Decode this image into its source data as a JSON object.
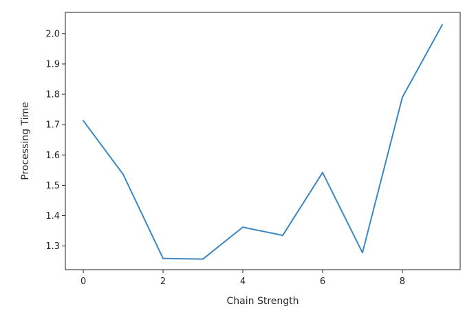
{
  "chart_data": {
    "type": "line",
    "xlabel": "Chain Strength",
    "ylabel": "Processing Time",
    "xlim": [
      -0.45,
      9.45
    ],
    "ylim": [
      1.222,
      2.07
    ],
    "grid": false,
    "x_ticks": [
      0,
      2,
      4,
      6,
      8
    ],
    "x_tick_labels": [
      "0",
      "2",
      "4",
      "6",
      "8"
    ],
    "y_ticks": [
      1.3,
      1.4,
      1.5,
      1.6,
      1.7,
      1.8,
      1.9,
      2.0
    ],
    "y_tick_labels": [
      "1.3",
      "1.4",
      "1.5",
      "1.6",
      "1.7",
      "1.8",
      "1.9",
      "2.0"
    ],
    "series": [
      {
        "color": "#3a87c0",
        "x": [
          0,
          1,
          2,
          3,
          4,
          5,
          6,
          7,
          8,
          9
        ],
        "y": [
          1.713,
          1.536,
          1.259,
          1.257,
          1.362,
          1.335,
          1.542,
          1.278,
          1.79,
          2.029
        ]
      }
    ]
  }
}
